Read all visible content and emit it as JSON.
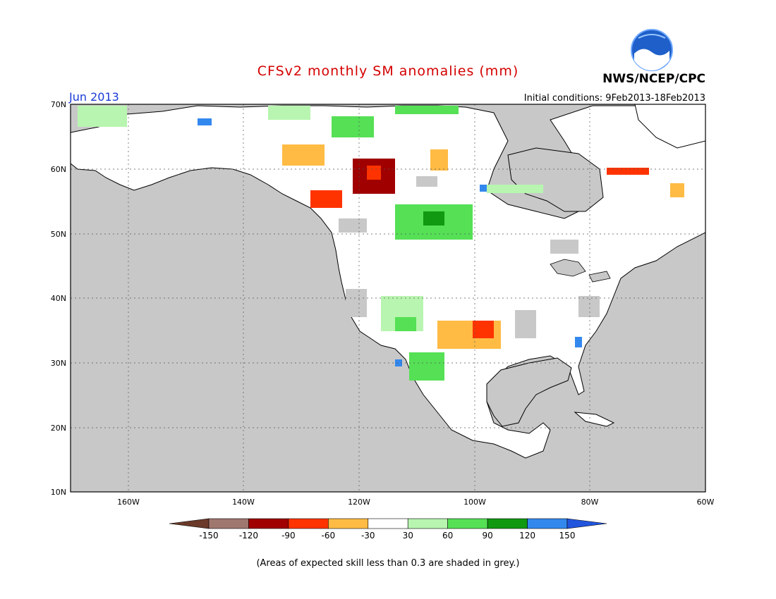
{
  "title": "CFSv2 monthly SM anomalies (mm)",
  "month": "Jun 2013",
  "initial_conditions": "Initial conditions: 9Feb2013-18Feb2013",
  "agency": "NWS/NCEP/CPC",
  "logo_text": "NOAA",
  "footnote": "(Areas of expected skill less than 0.3 are shaded in grey.)",
  "map": {
    "lat_labels": [
      "70N",
      "60N",
      "50N",
      "40N",
      "30N",
      "20N",
      "10N"
    ],
    "lon_labels": [
      "160W",
      "140W",
      "120W",
      "100W",
      "80W",
      "60W"
    ],
    "lat_range": [
      10,
      70
    ],
    "lon_range": [
      -170,
      -60
    ]
  },
  "legend": {
    "ticks": [
      "-150",
      "-120",
      "-90",
      "-60",
      "-30",
      "30",
      "60",
      "90",
      "120",
      "150"
    ],
    "colors": [
      "#6b3a2a",
      "#a0776e",
      "#a00000",
      "#ff3300",
      "#ffbb44",
      "#ffffff",
      "#b8f5b0",
      "#55e055",
      "#119911",
      "#3388ee",
      "#2255dd"
    ]
  },
  "colors": {
    "ocean": "#c8c8c8",
    "land": "#ffffff",
    "grey_skill": "#c8c8c8",
    "title": "#d40000",
    "month": "#1a3bd6"
  }
}
